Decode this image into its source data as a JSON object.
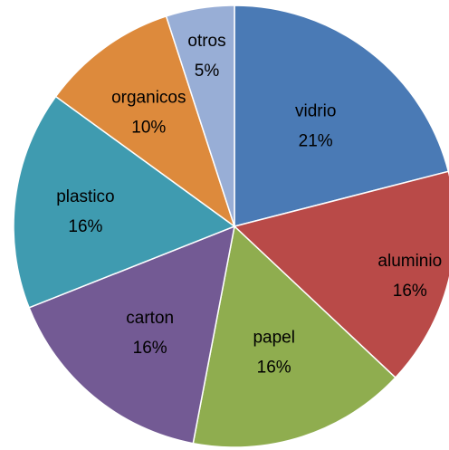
{
  "chart_data": {
    "type": "pie",
    "categories": [
      "vidrio",
      "aluminio",
      "papel",
      "carton",
      "plastico",
      "organicos",
      "otros"
    ],
    "values": [
      21,
      16,
      16,
      16,
      16,
      10,
      5
    ],
    "value_labels": [
      "21%",
      "16%",
      "16%",
      "16%",
      "16%",
      "10%",
      "5%"
    ],
    "colors": [
      "#4a7ab5",
      "#b94a48",
      "#8fad4f",
      "#735a94",
      "#3f9bb0",
      "#dd8a3c",
      "#98aed6"
    ],
    "start_angle_deg": 0,
    "direction": "clockwise",
    "title": "",
    "legend": "none"
  }
}
